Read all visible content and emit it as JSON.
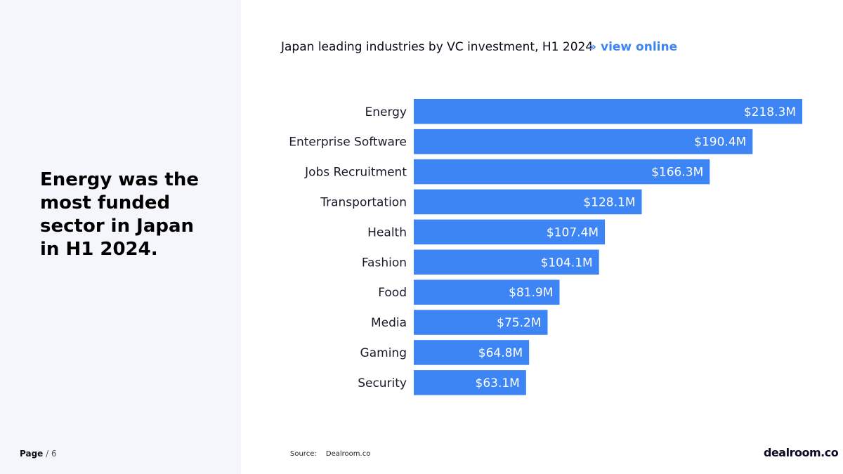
{
  "headline": "Energy was the most funded sector in Japan in H1 2024.",
  "page": {
    "label": "Page",
    "separator": "/",
    "number": "6"
  },
  "chart_header": {
    "title": "Japan leading industries by VC investment, H1 2024",
    "link_arrows": "»",
    "link_label": "view online"
  },
  "chart_data": {
    "type": "bar",
    "orientation": "horizontal",
    "title": "Japan leading industries by VC investment, H1 2024",
    "unit": "$M",
    "categories": [
      "Energy",
      "Enterprise Software",
      "Jobs Recruitment",
      "Transportation",
      "Health",
      "Fashion",
      "Food",
      "Media",
      "Gaming",
      "Security"
    ],
    "values": [
      218.3,
      190.4,
      166.3,
      128.1,
      107.4,
      104.1,
      81.9,
      75.2,
      64.8,
      63.1
    ],
    "labels": [
      "$218.3M",
      "$190.4M",
      "$166.3M",
      "$128.1M",
      "$107.4M",
      "$104.1M",
      "$81.9M",
      "$75.2M",
      "$64.8M",
      "$63.1M"
    ],
    "bar_color": "#3d84f5",
    "xlabel": "",
    "ylabel": ""
  },
  "source": {
    "label": "Source:",
    "value": "Dealroom.co"
  },
  "logo": {
    "text": "dealroom.co"
  }
}
